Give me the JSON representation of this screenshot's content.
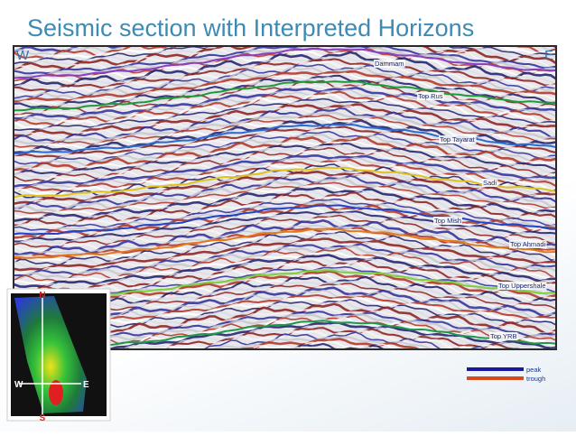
{
  "title": "Seismic section with Interpreted Horizons",
  "section": {
    "west": "W",
    "east": "E",
    "horizons": [
      {
        "label": "Dammam",
        "color": "#8a3fc0"
      },
      {
        "label": "Top Rus",
        "color": "#1f9a3a"
      },
      {
        "label": "Top Tayarat",
        "color": "#2a6bd1"
      },
      {
        "label": "Sadi",
        "color": "#e0c21c"
      },
      {
        "label": "Top Mish",
        "color": "#2244cc"
      },
      {
        "label": "Top Ahmadi",
        "color": "#e07a1c"
      },
      {
        "label": "Top Uppershale",
        "color": "#7cd13a"
      },
      {
        "label": "Top YRB",
        "color": "#1c9a4a"
      }
    ]
  },
  "legend": [
    {
      "label": "peak",
      "color": "#1a1aa0"
    },
    {
      "label": "trough",
      "color": "#d84a1a"
    }
  ],
  "map": {
    "north": "N",
    "south": "S",
    "west": "W",
    "east": "E"
  }
}
